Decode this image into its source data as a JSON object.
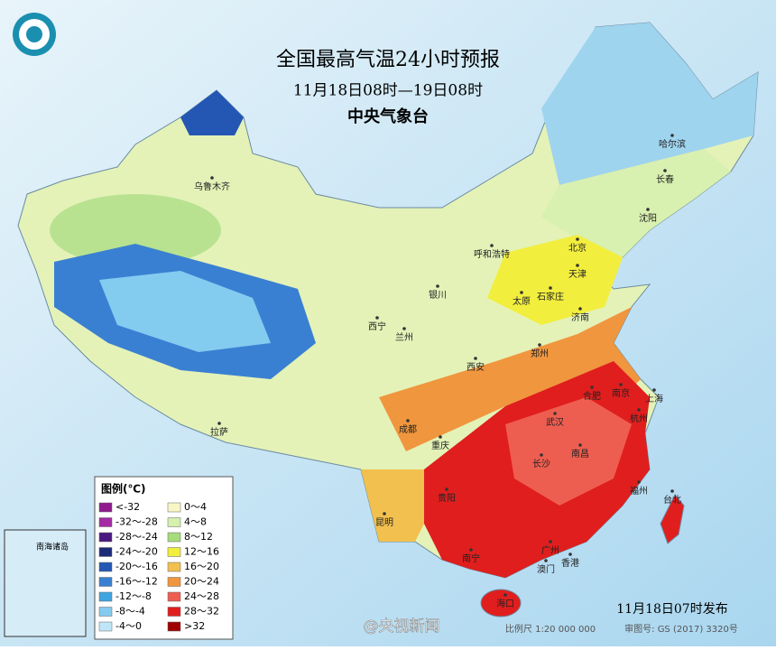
{
  "header": {
    "title": "全国最高气温24小时预报",
    "subtitle": "11月18日08时—19日08时",
    "agency": "中央气象台"
  },
  "legend": {
    "title": "图例(℃)",
    "items": [
      {
        "label": "<-32",
        "color": "#8e1a8e"
      },
      {
        "label": "-32～-28",
        "color": "#a52aa5"
      },
      {
        "label": "-28～-24",
        "color": "#4a1880"
      },
      {
        "label": "-24～-20",
        "color": "#1c2a78"
      },
      {
        "label": "-20～-16",
        "color": "#2456b4"
      },
      {
        "label": "-16～-12",
        "color": "#3a80d2"
      },
      {
        "label": "-12～-8",
        "color": "#3fa4e0"
      },
      {
        "label": "-8～-4",
        "color": "#84cbf0"
      },
      {
        "label": "-4～0",
        "color": "#bfe6f8"
      },
      {
        "label": "0～4",
        "color": "#f8f6c6"
      },
      {
        "label": "4～8",
        "color": "#d6f0ae"
      },
      {
        "label": "8～12",
        "color": "#a6dc7c"
      },
      {
        "label": "12～16",
        "color": "#f2ee3e"
      },
      {
        "label": "16～20",
        "color": "#f2c04e"
      },
      {
        "label": "20～24",
        "color": "#f0963e"
      },
      {
        "label": "24～28",
        "color": "#ee5e50"
      },
      {
        "label": "28～32",
        "color": "#e01e1e"
      },
      {
        "label": ">32",
        "color": "#a00000"
      }
    ]
  },
  "cities": [
    "乌鲁木齐",
    "哈尔滨",
    "长春",
    "沈阳",
    "北京",
    "天津",
    "呼和浩特",
    "银川",
    "太原",
    "石家庄",
    "济南",
    "西宁",
    "兰州",
    "郑州",
    "西安",
    "合肥",
    "南京",
    "上海",
    "拉萨",
    "成都",
    "武汉",
    "杭州",
    "重庆",
    "长沙",
    "南昌",
    "福州",
    "贵阳",
    "台北",
    "昆明",
    "南宁",
    "广州",
    "澳门",
    "香港",
    "海口"
  ],
  "inset": {
    "label": "南海诸岛"
  },
  "footer": {
    "issued": "11月18日07时发布",
    "scale": "比例尺 1:20 000 000",
    "review": "审图号: GS (2017) 3320号",
    "watermark": "@央视新闻"
  }
}
